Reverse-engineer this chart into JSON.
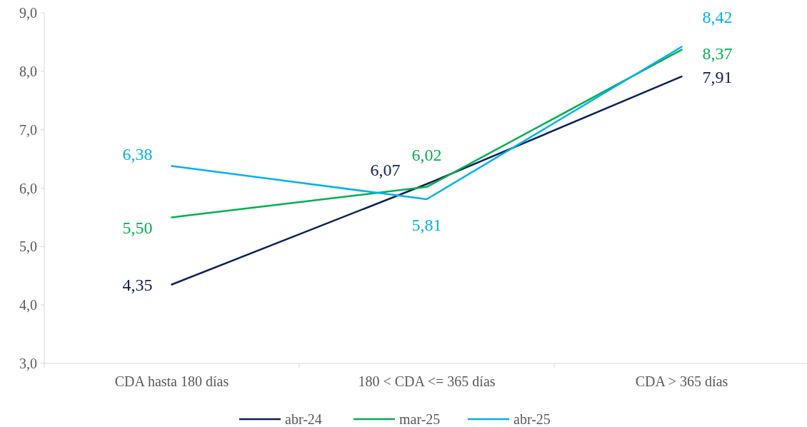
{
  "chart_data": {
    "type": "line",
    "categories": [
      "CDA hasta 180 días",
      "180 < CDA <= 365 días",
      "CDA > 365 días"
    ],
    "series": [
      {
        "name": "abr-24",
        "color": "#0b1f5c",
        "values": [
          4.35,
          6.07,
          7.91
        ],
        "value_labels": [
          "4,35",
          "6,07",
          "7,91"
        ]
      },
      {
        "name": "mar-25",
        "color": "#00b050",
        "values": [
          5.5,
          6.02,
          8.37
        ],
        "value_labels": [
          "5,50",
          "6,02",
          "8,37"
        ]
      },
      {
        "name": "abr-25",
        "color": "#00b0f0",
        "values": [
          6.38,
          5.81,
          8.42
        ],
        "value_labels": [
          "6,38",
          "5,81",
          "8,42"
        ]
      }
    ],
    "ylim": [
      3,
      9
    ],
    "yticks": [
      {
        "value": 3,
        "label": "3,0"
      },
      {
        "value": 4,
        "label": "4,0"
      },
      {
        "value": 5,
        "label": "5,0"
      },
      {
        "value": 6,
        "label": "6,0"
      },
      {
        "value": 7,
        "label": "7,0"
      },
      {
        "value": 8,
        "label": "8,0"
      },
      {
        "value": 9,
        "label": "9,0"
      }
    ],
    "grid": false,
    "legend": "bottom",
    "marker": "none",
    "line_style": "solid"
  }
}
